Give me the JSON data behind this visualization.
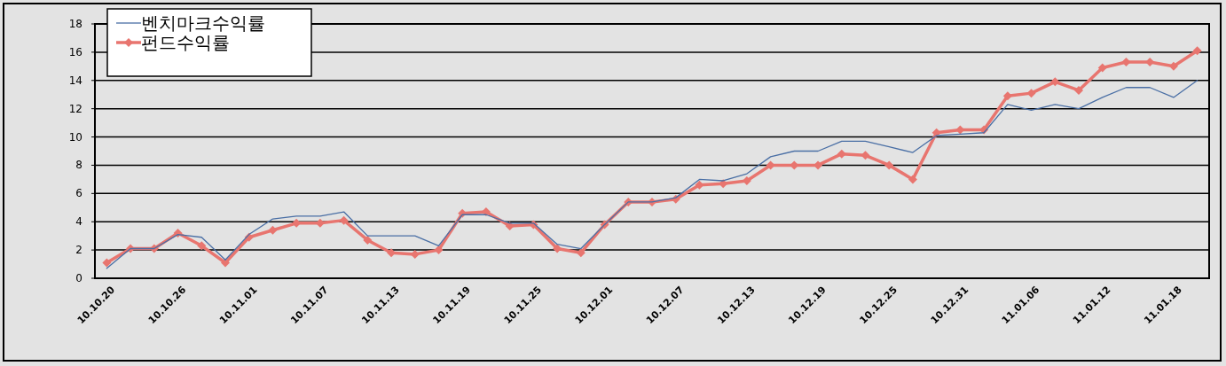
{
  "chart_data": {
    "type": "line",
    "ylim": [
      0,
      18
    ],
    "yticks": [
      0,
      2,
      4,
      6,
      8,
      10,
      12,
      14,
      16,
      18
    ],
    "grid": "y",
    "legend": "top left",
    "categories": [
      "10.10.20",
      null,
      null,
      "10.10.26",
      null,
      null,
      "10.11.01",
      null,
      null,
      "10.11.07",
      null,
      null,
      "10.11.13",
      null,
      null,
      "10.11.19",
      null,
      null,
      "10.11.25",
      null,
      null,
      "10.12.01",
      null,
      null,
      "10.12.07",
      null,
      null,
      "10.12.13",
      null,
      null,
      "10.12.19",
      null,
      null,
      "10.12.25",
      null,
      null,
      "10.12.31",
      null,
      null,
      "11.01.06",
      null,
      null,
      "11.01.12",
      null,
      null,
      "11.01.18",
      null
    ],
    "series": [
      {
        "name": "벤치마크수익률",
        "color": "#4a6fa5",
        "marker": "none",
        "values": [
          0.7,
          2.1,
          2.1,
          3.1,
          2.9,
          1.3,
          3.1,
          4.2,
          4.4,
          4.4,
          4.7,
          3.0,
          3.0,
          3.0,
          2.3,
          4.5,
          4.5,
          3.9,
          3.9,
          2.4,
          2.1,
          3.8,
          5.4,
          5.4,
          5.7,
          7.0,
          6.9,
          7.4,
          8.6,
          9.0,
          9.0,
          9.7,
          9.7,
          9.3,
          8.9,
          10.1,
          10.2,
          10.3,
          12.3,
          11.9,
          12.3,
          12.0,
          12.8,
          13.5,
          13.5,
          12.8,
          14.0
        ]
      },
      {
        "name": "펀드수익률",
        "color": "#e8756f",
        "marker": "diamond",
        "values": [
          1.1,
          2.1,
          2.1,
          3.2,
          2.3,
          1.1,
          2.9,
          3.4,
          3.9,
          3.9,
          4.1,
          2.7,
          1.8,
          1.7,
          2.0,
          4.6,
          4.7,
          3.7,
          3.8,
          2.1,
          1.8,
          3.8,
          5.4,
          5.4,
          5.6,
          6.6,
          6.7,
          6.9,
          8.0,
          8.0,
          8.0,
          8.8,
          8.7,
          8.0,
          7.0,
          10.3,
          10.5,
          10.5,
          12.9,
          13.1,
          13.9,
          13.3,
          14.9,
          15.3,
          15.3,
          15.0,
          16.1
        ]
      }
    ]
  }
}
